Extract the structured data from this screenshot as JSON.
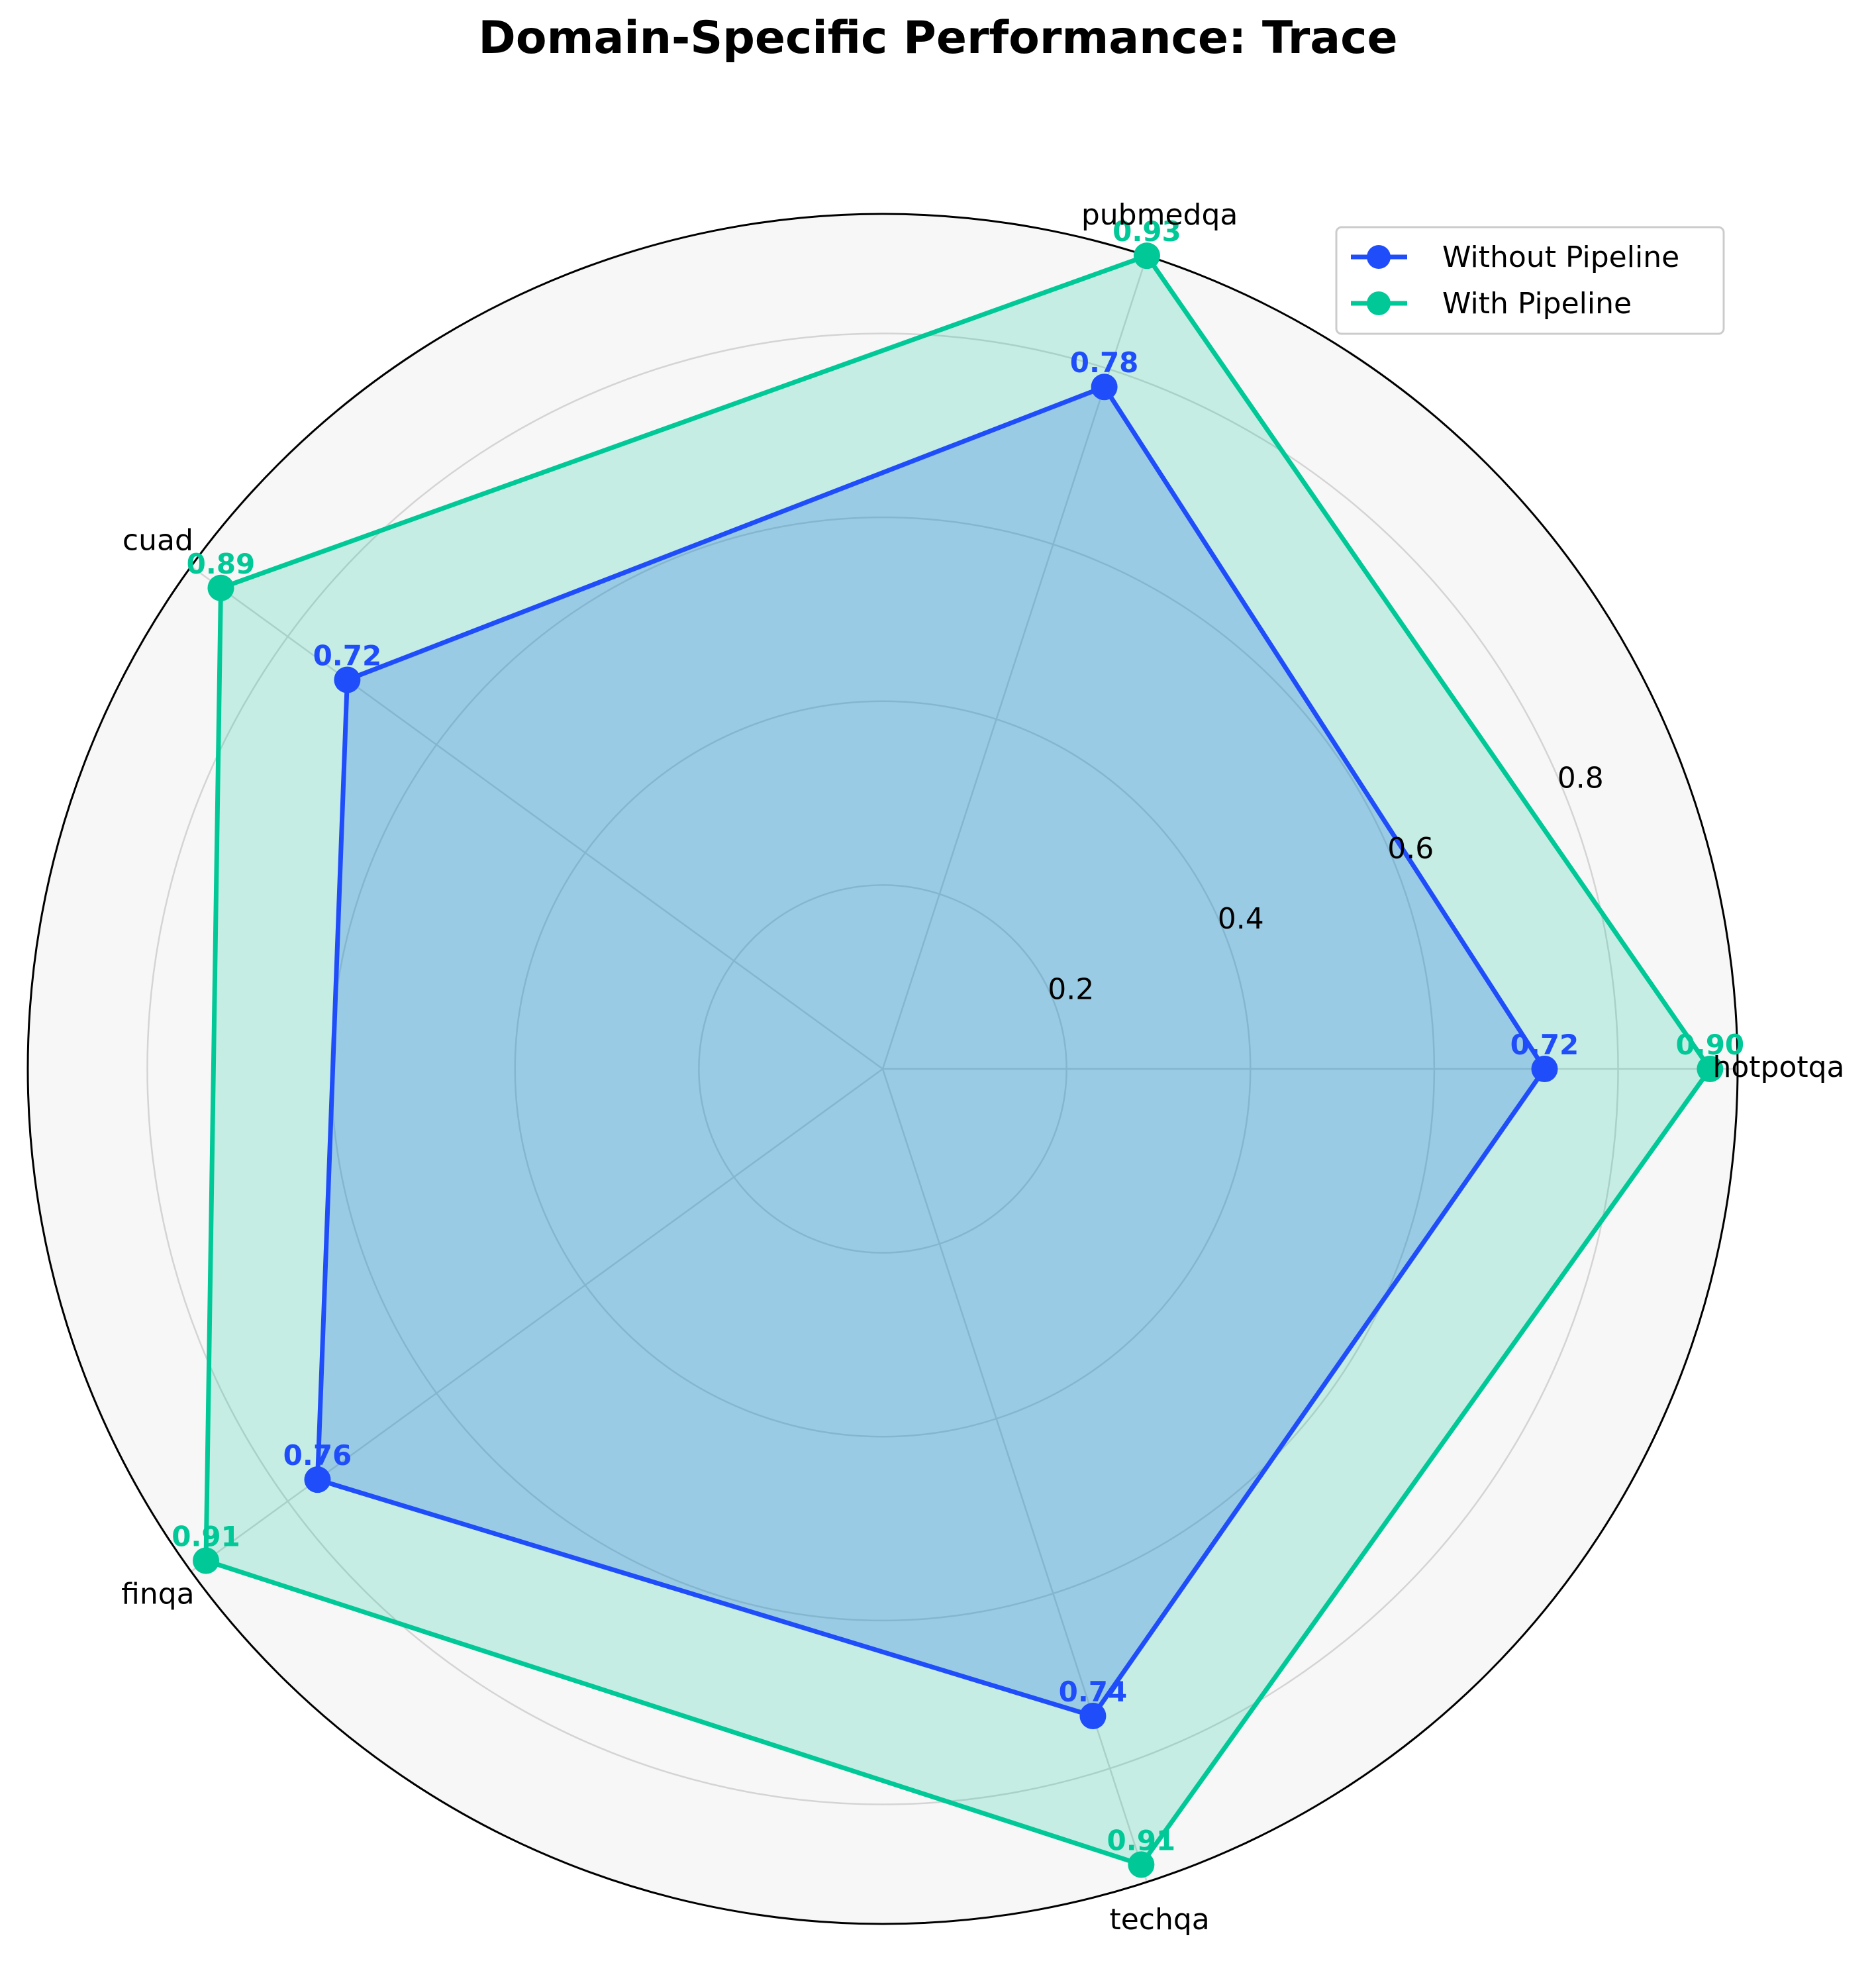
{
  "chart_data": {
    "type": "radar",
    "title": "Domain-Specific Performance: Trace",
    "categories": [
      "hotpotqa",
      "pubmedqa",
      "cuad",
      "finqa",
      "techqa"
    ],
    "series": [
      {
        "name": "Without Pipeline",
        "values": [
          0.72,
          0.78,
          0.72,
          0.76,
          0.74
        ],
        "color": "#1f4dfa",
        "labels": [
          "0.72",
          "0.78",
          "0.72",
          "0.76",
          "0.74"
        ]
      },
      {
        "name": "With Pipeline",
        "values": [
          0.9,
          0.93,
          0.89,
          0.91,
          0.91
        ],
        "color": "#00c896",
        "labels": [
          "0.90",
          "0.93",
          "0.89",
          "0.91",
          "0.91"
        ]
      }
    ],
    "radial_ticks": [
      "0.2",
      "0.4",
      "0.6",
      "0.8"
    ],
    "radial_tick_values": [
      0.2,
      0.4,
      0.6,
      0.8
    ],
    "rlim": [
      0,
      0.93
    ],
    "grid": true,
    "legend_position": "top-right",
    "background_color": "#f7f7f7"
  }
}
